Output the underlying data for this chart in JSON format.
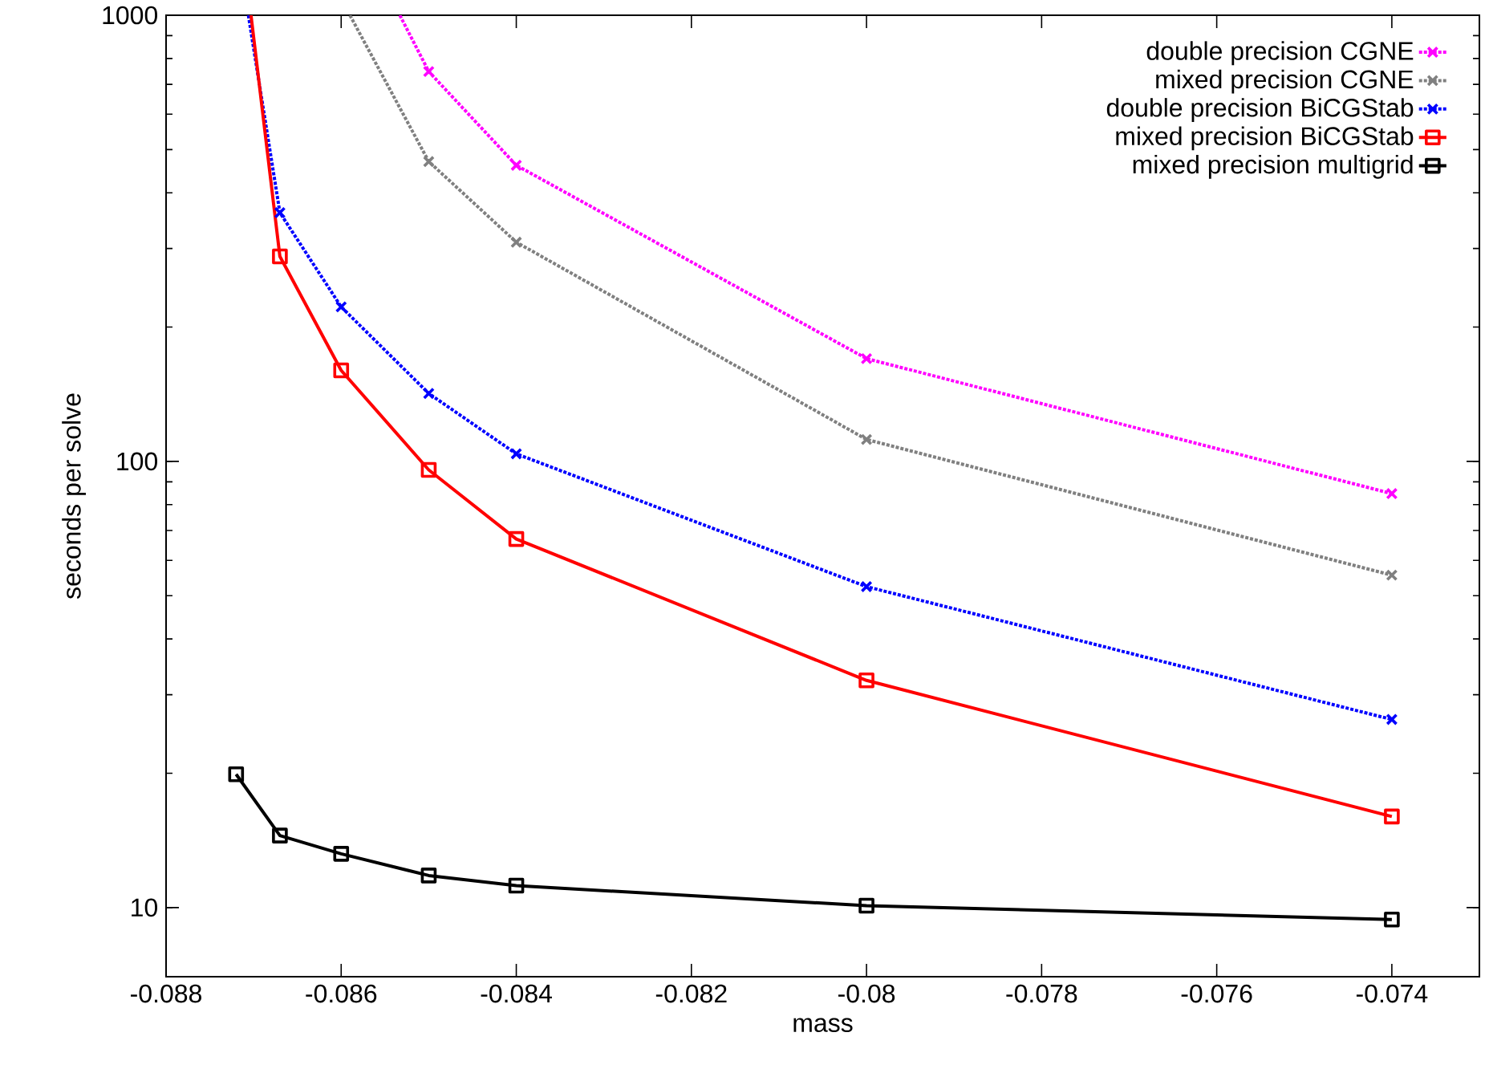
{
  "chart_data": {
    "type": "line",
    "xlabel": "mass",
    "ylabel": "seconds per solve",
    "log": "y",
    "legend": "top right",
    "xlim": [
      -0.088,
      -0.073
    ],
    "ylim": [
      7,
      1000
    ],
    "xticks": [
      -0.088,
      -0.086,
      -0.084,
      -0.082,
      -0.08,
      -0.078,
      -0.076,
      -0.074
    ],
    "yticks": [
      10,
      100,
      1000
    ],
    "series": [
      {
        "name": "double precision CGNE",
        "color": "#ff00ff",
        "marker": "cross",
        "line_style": "dotted",
        "x": [
          -0.08533,
          -0.085,
          -0.084,
          -0.08,
          -0.074
        ],
        "values": [
          1000,
          748,
          461,
          170,
          84.7
        ]
      },
      {
        "name": "mixed precision CGNE",
        "color": "#808080",
        "marker": "cross",
        "line_style": "dotted",
        "x": [
          -0.0859,
          -0.085,
          -0.084,
          -0.08,
          -0.074
        ],
        "values": [
          1000,
          470,
          310,
          112,
          55.6
        ]
      },
      {
        "name": "double precision BiCGStab",
        "color": "#0000ff",
        "marker": "cross",
        "line_style": "dotted",
        "x": [
          -0.08706,
          -0.0867,
          -0.086,
          -0.085,
          -0.084,
          -0.08,
          -0.074
        ],
        "values": [
          1000,
          361,
          222,
          142,
          104,
          52.4,
          26.4
        ]
      },
      {
        "name": "mixed precision BiCGStab",
        "color": "#ff0000",
        "marker": "square",
        "line_style": "solid",
        "x": [
          -0.08703,
          -0.0867,
          -0.086,
          -0.085,
          -0.084,
          -0.08,
          -0.074
        ],
        "values": [
          1000,
          288,
          160,
          95.7,
          67,
          32.3,
          16
        ]
      },
      {
        "name": "mixed precision multigrid",
        "color": "#000000",
        "marker": "square",
        "line_style": "solid",
        "x": [
          -0.0872,
          -0.0867,
          -0.086,
          -0.085,
          -0.084,
          -0.08,
          -0.074
        ],
        "values": [
          19.9,
          14.5,
          13.2,
          11.8,
          11.2,
          10.1,
          9.4
        ]
      }
    ]
  }
}
